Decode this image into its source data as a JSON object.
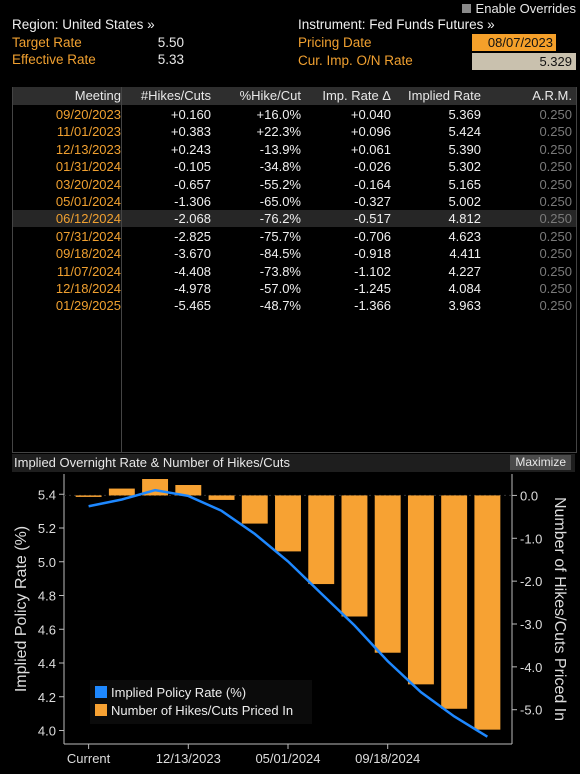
{
  "header": {
    "enable_overrides": "Enable Overrides",
    "region": "Region: United States »",
    "instrument": "Instrument: Fed Funds Futures »",
    "target_rate_label": "Target Rate",
    "target_rate_value": "5.50",
    "effective_rate_label": "Effective Rate",
    "effective_rate_value": "5.33",
    "pricing_date_label": "Pricing Date",
    "pricing_date_value": "08/07/2023",
    "cur_imp_label": "Cur. Imp. O/N Rate",
    "cur_imp_value": "5.329"
  },
  "table": {
    "columns": [
      "Meeting",
      "#Hikes/Cuts",
      "%Hike/Cut",
      "Imp. Rate Δ",
      "Implied Rate",
      "A.R.M."
    ],
    "rows": [
      {
        "meeting": "09/20/2023",
        "hikes": "+0.160",
        "pct": "+16.0%",
        "delta": "+0.040",
        "implied": "5.369",
        "arm": "0.250"
      },
      {
        "meeting": "11/01/2023",
        "hikes": "+0.383",
        "pct": "+22.3%",
        "delta": "+0.096",
        "implied": "5.424",
        "arm": "0.250"
      },
      {
        "meeting": "12/13/2023",
        "hikes": "+0.243",
        "pct": "-13.9%",
        "delta": "+0.061",
        "implied": "5.390",
        "arm": "0.250"
      },
      {
        "meeting": "01/31/2024",
        "hikes": "-0.105",
        "pct": "-34.8%",
        "delta": "-0.026",
        "implied": "5.302",
        "arm": "0.250"
      },
      {
        "meeting": "03/20/2024",
        "hikes": "-0.657",
        "pct": "-55.2%",
        "delta": "-0.164",
        "implied": "5.165",
        "arm": "0.250"
      },
      {
        "meeting": "05/01/2024",
        "hikes": "-1.306",
        "pct": "-65.0%",
        "delta": "-0.327",
        "implied": "5.002",
        "arm": "0.250"
      },
      {
        "meeting": "06/12/2024",
        "hikes": "-2.068",
        "pct": "-76.2%",
        "delta": "-0.517",
        "implied": "4.812",
        "arm": "0.250"
      },
      {
        "meeting": "07/31/2024",
        "hikes": "-2.825",
        "pct": "-75.7%",
        "delta": "-0.706",
        "implied": "4.623",
        "arm": "0.250"
      },
      {
        "meeting": "09/18/2024",
        "hikes": "-3.670",
        "pct": "-84.5%",
        "delta": "-0.918",
        "implied": "4.411",
        "arm": "0.250"
      },
      {
        "meeting": "11/07/2024",
        "hikes": "-4.408",
        "pct": "-73.8%",
        "delta": "-1.102",
        "implied": "4.227",
        "arm": "0.250"
      },
      {
        "meeting": "12/18/2024",
        "hikes": "-4.978",
        "pct": "-57.0%",
        "delta": "-1.245",
        "implied": "4.084",
        "arm": "0.250"
      },
      {
        "meeting": "01/29/2025",
        "hikes": "-5.465",
        "pct": "-48.7%",
        "delta": "-1.366",
        "implied": "3.963",
        "arm": "0.250"
      }
    ],
    "highlight_row": 6
  },
  "chart_panel": {
    "title": "Implied Overnight Rate & Number of Hikes/Cuts",
    "maximize_label": "Maximize"
  },
  "chart_data": {
    "type": "bar",
    "categories": [
      "Current",
      "09/20/2023",
      "11/01/2023",
      "12/13/2023",
      "01/31/2024",
      "03/20/2024",
      "05/01/2024",
      "06/12/2024",
      "07/31/2024",
      "09/18/2024",
      "11/07/2024",
      "12/18/2024",
      "01/29/2025"
    ],
    "x_tick_labels": [
      "Current",
      "12/13/2023",
      "05/01/2024",
      "09/18/2024"
    ],
    "series": [
      {
        "name": "Implied Policy Rate (%)",
        "type": "line",
        "axis": "left",
        "color": "#1e88ff",
        "values": [
          5.329,
          5.369,
          5.424,
          5.39,
          5.302,
          5.165,
          5.002,
          4.812,
          4.623,
          4.411,
          4.227,
          4.084,
          3.963
        ]
      },
      {
        "name": "Number of Hikes/Cuts Priced In",
        "type": "bar",
        "axis": "right",
        "color": "#f7a233",
        "values": [
          0,
          0.16,
          0.383,
          0.243,
          -0.105,
          -0.657,
          -1.306,
          -2.068,
          -2.825,
          -3.67,
          -4.408,
          -4.978,
          -5.465
        ]
      }
    ],
    "ylabel": "Implied Policy Rate (%)",
    "y2label": "Number of Hikes/Cuts Priced In",
    "ylim": [
      3.92,
      5.52
    ],
    "y2lim": [
      -5.8,
      0.5
    ],
    "yticks": [
      "4.0",
      "4.2",
      "4.4",
      "4.6",
      "4.8",
      "5.0",
      "5.2",
      "5.4"
    ],
    "y2ticks": [
      "0.0",
      "-1.0",
      "-2.0",
      "-3.0",
      "-4.0",
      "-5.0"
    ],
    "legend_position": "bottom-left"
  },
  "colors": {
    "accent_orange": "#f0a030",
    "line_blue": "#1e88ff",
    "bar_orange": "#f7a233"
  }
}
